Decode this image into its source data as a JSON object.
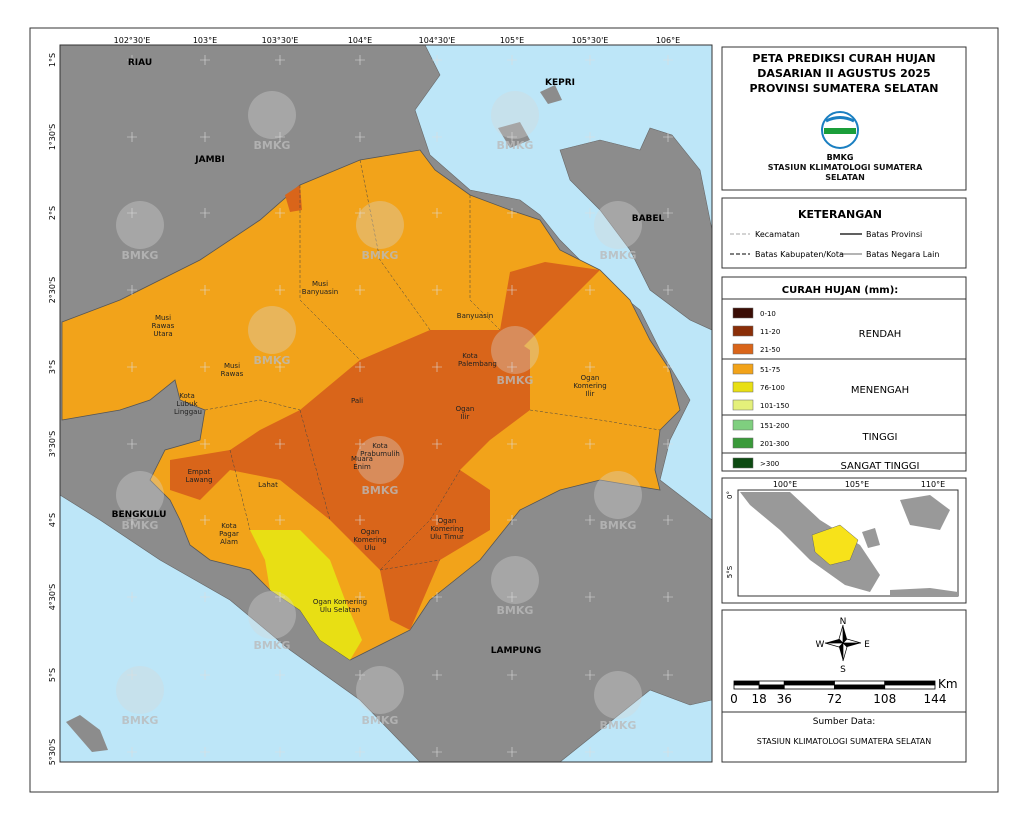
{
  "map": {
    "x_labels": [
      "102°30'E",
      "103°E",
      "103°30'E",
      "104°E",
      "104°30'E",
      "105°E",
      "105°30'E",
      "106°E"
    ],
    "y_labels": [
      "1°S",
      "1°30'S",
      "2°S",
      "2°30'S",
      "3°S",
      "3°30'S",
      "4°S",
      "4°30'S",
      "5°S",
      "5°30'S"
    ],
    "regions": [
      "RIAU",
      "KEPRI",
      "JAMBI",
      "BABEL",
      "BENGKULU",
      "LAMPUNG"
    ],
    "districts": [
      "Musi Rawas Utara",
      "Musi Banyuasin",
      "Banyuasin",
      "Musi Rawas",
      "Kota Lubuk Linggau",
      "Kota Palembang",
      "Pali",
      "Ogan Ilir",
      "Ogan Komering Ilir",
      "Kota Prabumulih",
      "Muara Enim",
      "Empat Lawang",
      "Lahat",
      "Kota Pagar Alam",
      "Ogan Komering Ulu",
      "Ogan Komering Ulu Timur",
      "Ogan Komering Ulu Selatan"
    ],
    "watermark": "BMKG"
  },
  "title": {
    "lines": [
      "PETA PREDIKSI CURAH HUJAN",
      "DASARIAN II AGUSTUS 2025",
      "PROVINSI SUMATERA SELATAN"
    ],
    "logo_text": "BMKG",
    "station": "STASIUN KLIMATOLOGI SUMATERA SELATAN"
  },
  "keterangan": {
    "title": "KETERANGAN",
    "items": [
      "Kecamatan",
      "Batas Provinsi",
      "Batas Kabupaten/Kota",
      "Batas Negara Lain"
    ]
  },
  "legend": {
    "title": "CURAH HUJAN (mm):",
    "groups": [
      {
        "label": "RENDAH",
        "classes": [
          {
            "label": "0-10",
            "color": "#3a0d05"
          },
          {
            "label": "11-20",
            "color": "#8a2e08"
          },
          {
            "label": "21-50",
            "color": "#d9651a"
          }
        ]
      },
      {
        "label": "MENENGAH",
        "classes": [
          {
            "label": "51-75",
            "color": "#f2a31a"
          },
          {
            "label": "76-100",
            "color": "#e8df14"
          },
          {
            "label": "101-150",
            "color": "#e4f07a"
          }
        ]
      },
      {
        "label": "TINGGI",
        "classes": [
          {
            "label": "151-200",
            "color": "#7fcf7f"
          },
          {
            "label": "201-300",
            "color": "#3a9a3a"
          }
        ]
      },
      {
        "label": "SANGAT TINGGI",
        "classes": [
          {
            "label": ">300",
            "color": "#0d4a12"
          }
        ]
      }
    ]
  },
  "inset": {
    "x_labels": [
      "100°E",
      "105°E",
      "110°E"
    ],
    "y_labels": [
      "0°",
      "5°S"
    ]
  },
  "north": {
    "n": "N",
    "e": "E",
    "s": "S",
    "w": "W"
  },
  "scale": {
    "unit": "Km",
    "ticks": [
      0,
      18,
      36,
      72,
      108,
      144
    ]
  },
  "source": {
    "label": "Sumber Data:",
    "text": "STASIUN KLIMATOLOGI SUMATERA SELATAN"
  }
}
